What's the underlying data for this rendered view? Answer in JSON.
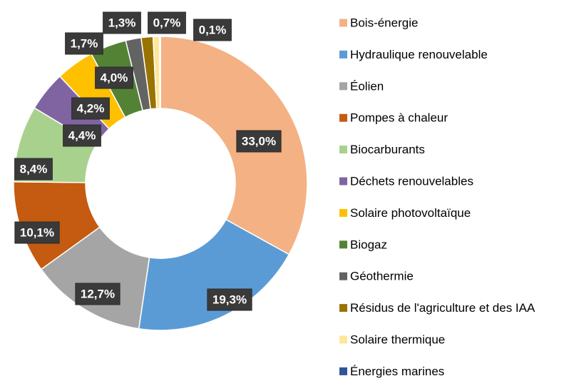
{
  "chart_data": {
    "type": "pie",
    "donut": true,
    "categories": [
      "Bois-énergie",
      "Hydraulique renouvelable",
      "Éolien",
      "Pompes à chaleur",
      "Biocarburants",
      "Déchets renouvelables",
      "Solaire photovoltaïque",
      "Biogaz",
      "Géothermie",
      "Résidus de l'agriculture et des IAA",
      "Solaire thermique",
      "Énergies marines"
    ],
    "values": [
      33.0,
      19.3,
      12.7,
      10.1,
      8.4,
      4.4,
      4.2,
      4.0,
      1.7,
      1.3,
      0.7,
      0.1
    ],
    "value_labels": [
      "33,0%",
      "19,3%",
      "12,7%",
      "10,1%",
      "8,4%",
      "4,4%",
      "4,2%",
      "4,0%",
      "1,7%",
      "1,3%",
      "0,7%",
      "0,1%"
    ],
    "colors": [
      "#f4b183",
      "#5b9bd5",
      "#a5a5a5",
      "#c55a11",
      "#a9d18e",
      "#8064a2",
      "#ffc000",
      "#548235",
      "#636363",
      "#997300",
      "#ffe699",
      "#2f5597"
    ],
    "legend": "right"
  }
}
